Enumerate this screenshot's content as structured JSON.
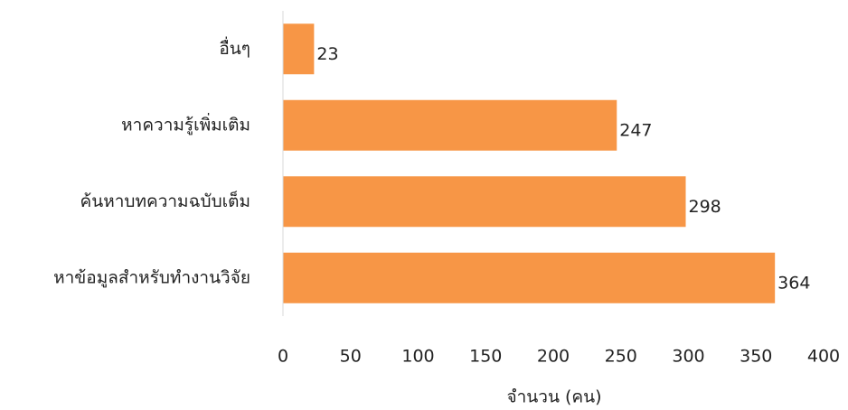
{
  "chart_data": {
    "type": "bar",
    "orientation": "horizontal",
    "categories": [
      "อื่นๆ",
      "หาความรู้เพิ่มเติม",
      "ค้นหาบทความฉบับเต็ม",
      "หาข้อมูลสำหรับทำงานวิจัย"
    ],
    "values": [
      23,
      247,
      298,
      364
    ],
    "color": "#f79646",
    "xlabel": "จำนวน (คน)",
    "xlim": [
      0,
      400
    ],
    "xticks": [
      0,
      50,
      100,
      150,
      200,
      250,
      300,
      350,
      400
    ],
    "grid": false
  }
}
